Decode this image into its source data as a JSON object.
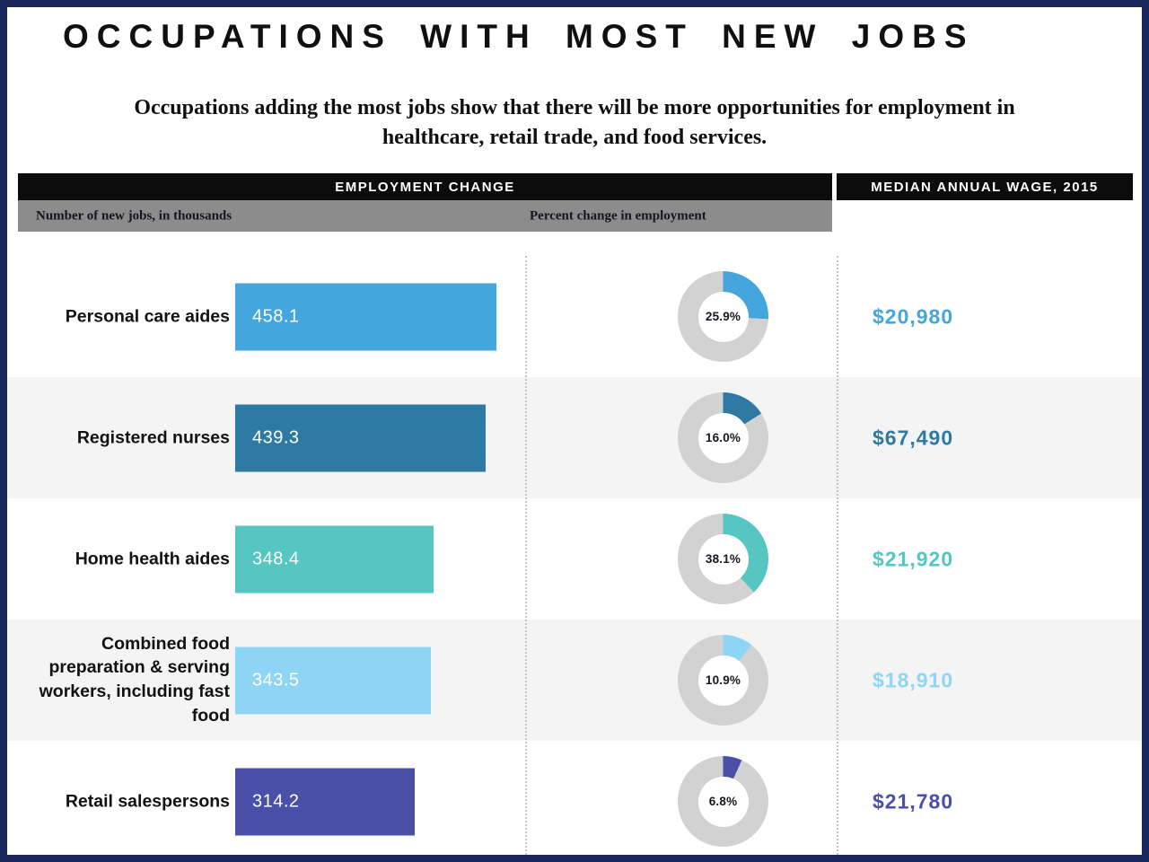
{
  "frame": {
    "border_color": "#18275c"
  },
  "header": {
    "title": "OCCUPATIONS WITH MOST NEW JOBS",
    "subtitle": "Occupations adding the most jobs show that there will be more opportunities for employment in healthcare, retail trade, and food services."
  },
  "columns": {
    "employment_change": "EMPLOYMENT CHANGE",
    "median_wage": "MEDIAN ANNUAL WAGE, 2015",
    "jobs_subheader": "Number of new jobs, in thousands",
    "percent_subheader": "Percent change in employment"
  },
  "chart_data": {
    "type": "bar",
    "title": "OCCUPATIONS WITH MOST NEW JOBS",
    "categories": [
      "Personal care aides",
      "Registered nurses",
      "Home health aides",
      "Combined food preparation & serving workers, including fast food",
      "Retail salespersons"
    ],
    "series": [
      {
        "name": "Number of new jobs, in thousands",
        "values": [
          458.1,
          439.3,
          348.4,
          343.5,
          314.2
        ]
      },
      {
        "name": "Percent change in employment (%)",
        "values": [
          25.9,
          16.0,
          38.1,
          10.9,
          6.8
        ]
      },
      {
        "name": "Median annual wage, 2015 ($)",
        "values": [
          20980,
          67490,
          21920,
          18910,
          21780
        ]
      }
    ],
    "max_value": 458.1,
    "donut_track_color": "#d2d2d2",
    "alt_row_background": "#f4f4f4",
    "rows": [
      {
        "label": "Personal care aides",
        "jobs_thousands": 458.1,
        "jobs_label": "458.1",
        "percent_change": 25.9,
        "percent_label": "25.9%",
        "wage": "$20,980",
        "color": "#45a5dd"
      },
      {
        "label": "Registered nurses",
        "jobs_thousands": 439.3,
        "jobs_label": "439.3",
        "percent_change": 16.0,
        "percent_label": "16.0%",
        "wage": "$67,490",
        "color": "#2f7aa4"
      },
      {
        "label": "Home health aides",
        "jobs_thousands": 348.4,
        "jobs_label": "348.4",
        "percent_change": 38.1,
        "percent_label": "38.1%",
        "wage": "$21,920",
        "color": "#55c6c2"
      },
      {
        "label": "Combined food preparation & serving workers, including fast food",
        "jobs_thousands": 343.5,
        "jobs_label": "343.5",
        "percent_change": 10.9,
        "percent_label": "10.9%",
        "wage": "$18,910",
        "color": "#8ed5f6"
      },
      {
        "label": "Retail salespersons",
        "jobs_thousands": 314.2,
        "jobs_label": "314.2",
        "percent_change": 6.8,
        "percent_label": "6.8%",
        "wage": "$21,780",
        "color": "#4a50a8"
      }
    ]
  }
}
